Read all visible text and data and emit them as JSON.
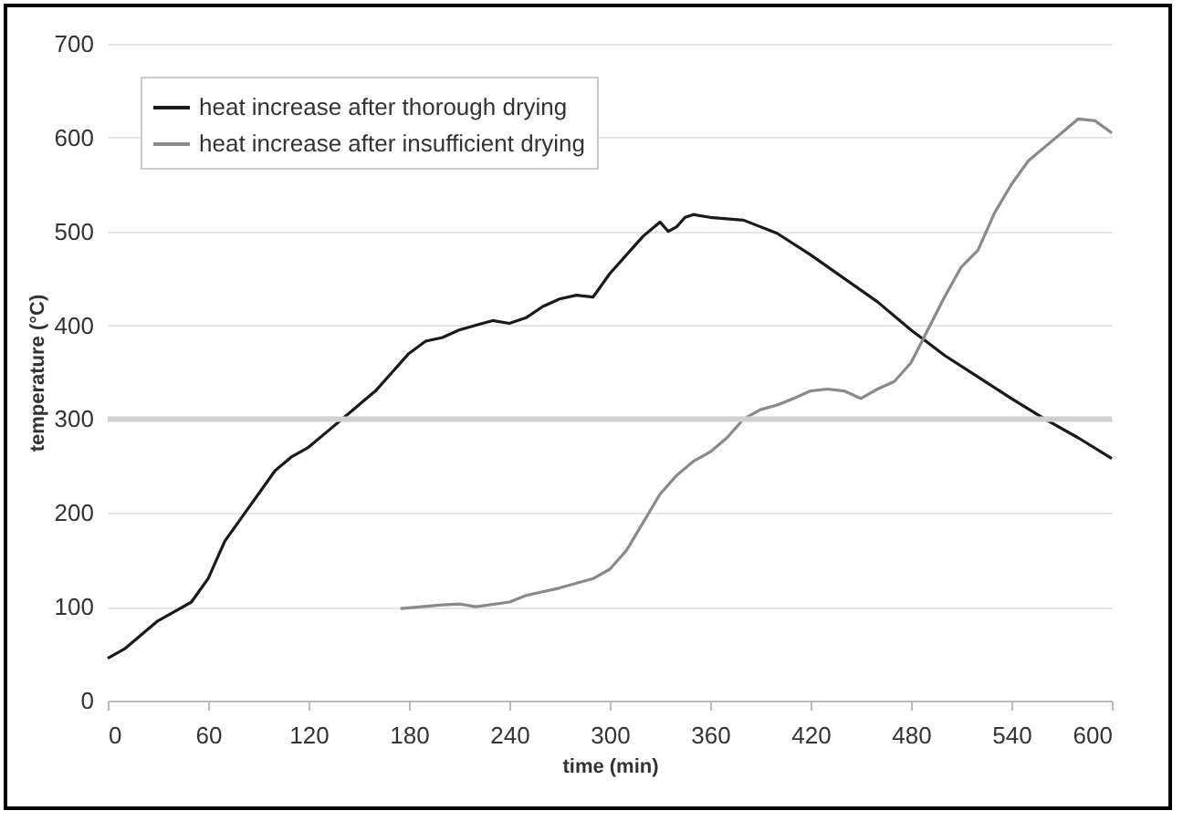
{
  "chart_data": {
    "type": "line",
    "xlabel": "time (min)",
    "ylabel": "temperature (°C)",
    "xlim": [
      0,
      600
    ],
    "xticks": [
      0,
      60,
      120,
      180,
      240,
      300,
      360,
      420,
      480,
      540,
      600
    ],
    "ylim": [
      0,
      700
    ],
    "yticks": [
      0,
      100,
      200,
      300,
      400,
      500,
      600,
      700
    ],
    "grid": "y",
    "legend": "top left",
    "marker": "none",
    "line_style": "solid",
    "ref_lines": [
      {
        "axis": "y",
        "value": 300,
        "color": "#d0d0d0"
      }
    ],
    "series": [
      {
        "name": "heat increase after thorough drying",
        "color": "#1a1a1a",
        "x": [
          0,
          10,
          20,
          30,
          40,
          50,
          60,
          70,
          80,
          90,
          100,
          110,
          120,
          130,
          140,
          150,
          160,
          170,
          180,
          190,
          200,
          210,
          220,
          230,
          240,
          250,
          260,
          270,
          280,
          290,
          300,
          310,
          320,
          330,
          335,
          340,
          345,
          350,
          360,
          380,
          400,
          420,
          440,
          460,
          480,
          500,
          520,
          540,
          560,
          580,
          600
        ],
        "values": [
          45,
          55,
          70,
          85,
          95,
          105,
          130,
          170,
          195,
          220,
          245,
          260,
          270,
          285,
          300,
          315,
          330,
          350,
          370,
          383,
          387,
          395,
          400,
          405,
          402,
          408,
          420,
          428,
          432,
          430,
          455,
          475,
          495,
          510,
          500,
          505,
          515,
          518,
          515,
          512,
          498,
          475,
          450,
          425,
          395,
          368,
          345,
          322,
          300,
          280,
          258
        ]
      },
      {
        "name": "heat increase after insufficient drying",
        "color": "#8a8a8a",
        "x": [
          175,
          200,
          210,
          220,
          240,
          250,
          270,
          290,
          300,
          310,
          320,
          330,
          340,
          350,
          360,
          370,
          380,
          390,
          400,
          410,
          420,
          430,
          440,
          450,
          460,
          470,
          480,
          490,
          500,
          510,
          520,
          530,
          540,
          550,
          560,
          570,
          580,
          590,
          600
        ],
        "values": [
          98,
          102,
          103,
          100,
          105,
          112,
          120,
          130,
          140,
          160,
          190,
          220,
          240,
          255,
          265,
          280,
          300,
          310,
          315,
          322,
          330,
          332,
          330,
          322,
          332,
          340,
          360,
          395,
          430,
          462,
          480,
          520,
          550,
          575,
          590,
          605,
          620,
          618,
          605
        ]
      }
    ]
  }
}
